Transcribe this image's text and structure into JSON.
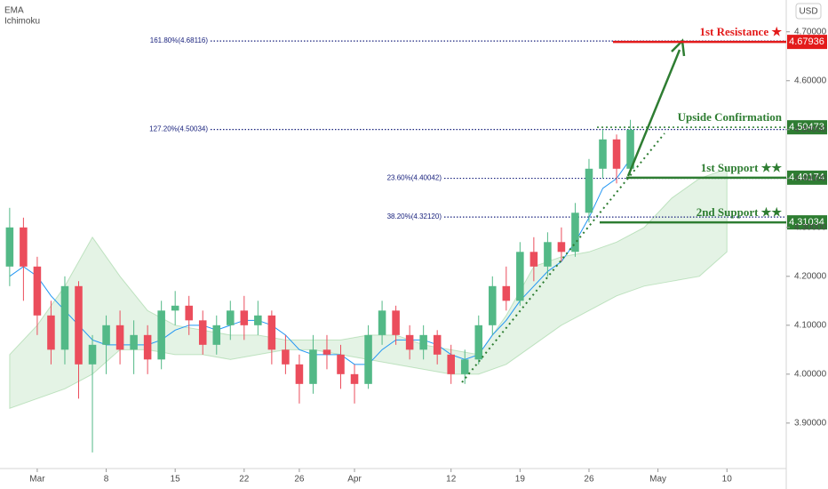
{
  "chart_data": {
    "type": "candlestick",
    "currency": "USD",
    "legend": [
      "EMA",
      "Ichimoku"
    ],
    "xlim": [
      -2.7,
      54.3
    ],
    "xticks": [
      {
        "value": 0,
        "label": "Mar"
      },
      {
        "value": 5,
        "label": "8"
      },
      {
        "value": 10,
        "label": "15"
      },
      {
        "value": 15,
        "label": "22"
      },
      {
        "value": 19,
        "label": "26"
      },
      {
        "value": 23,
        "label": "Apr"
      },
      {
        "value": 30,
        "label": "12"
      },
      {
        "value": 35,
        "label": "19"
      },
      {
        "value": 40,
        "label": "26"
      },
      {
        "value": 45,
        "label": "May"
      },
      {
        "value": 50,
        "label": "10"
      }
    ],
    "ylim": [
      3.807,
      4.765
    ],
    "yticks": [
      {
        "value": 3.9,
        "label": "3.90000"
      },
      {
        "value": 4.0,
        "label": "4.00000"
      },
      {
        "value": 4.1,
        "label": "4.10000"
      },
      {
        "value": 4.2,
        "label": "4.20000"
      },
      {
        "value": 4.3,
        "label": "4.30000"
      },
      {
        "value": 4.4,
        "label": "4.40000"
      },
      {
        "value": 4.5,
        "label": "4.50000"
      },
      {
        "value": 4.6,
        "label": "4.60000"
      },
      {
        "value": 4.7,
        "label": "4.70000"
      }
    ],
    "grid": false,
    "up_color": "#53b987",
    "down_color": "#eb4d5c",
    "x": [
      -2,
      -1,
      0,
      1,
      2,
      3,
      4,
      5,
      6,
      7,
      8,
      9,
      10,
      11,
      12,
      13,
      14,
      15,
      16,
      17,
      18,
      19,
      20,
      21,
      22,
      23,
      24,
      25,
      26,
      27,
      28,
      29,
      30,
      31,
      32,
      33,
      34,
      35,
      36,
      37,
      38,
      39,
      40,
      41,
      42,
      43
    ],
    "open": [
      4.22,
      4.3,
      4.22,
      4.12,
      4.05,
      4.18,
      4.02,
      4.06,
      4.1,
      4.05,
      4.08,
      4.03,
      4.13,
      4.14,
      4.11,
      4.06,
      4.1,
      4.13,
      4.1,
      4.12,
      4.05,
      4.02,
      3.98,
      4.05,
      4.04,
      4.0,
      3.98,
      4.08,
      4.13,
      4.08,
      4.05,
      4.08,
      4.04,
      4.0,
      4.03,
      4.1,
      4.18,
      4.15,
      4.25,
      4.22,
      4.27,
      4.25,
      4.33,
      4.42,
      4.48,
      4.42
    ],
    "high": [
      4.34,
      4.32,
      4.24,
      4.15,
      4.2,
      4.19,
      4.08,
      4.12,
      4.13,
      4.11,
      4.1,
      4.15,
      4.17,
      4.16,
      4.13,
      4.12,
      4.15,
      4.16,
      4.15,
      4.13,
      4.08,
      4.04,
      4.08,
      4.08,
      4.06,
      4.02,
      4.1,
      4.15,
      4.14,
      4.1,
      4.1,
      4.09,
      4.06,
      4.05,
      4.12,
      4.2,
      4.22,
      4.27,
      4.28,
      4.29,
      4.3,
      4.35,
      4.44,
      4.5,
      4.49,
      4.52
    ],
    "low": [
      4.18,
      4.15,
      4.08,
      4.02,
      4.02,
      3.95,
      3.84,
      4.0,
      4.02,
      4.0,
      4.0,
      4.01,
      4.1,
      4.08,
      4.04,
      4.04,
      4.07,
      4.07,
      4.08,
      4.02,
      4.0,
      3.94,
      3.96,
      4.01,
      3.97,
      3.94,
      3.97,
      4.06,
      4.06,
      4.03,
      4.03,
      4.02,
      3.98,
      3.98,
      4.02,
      4.08,
      4.13,
      4.14,
      4.19,
      4.2,
      4.23,
      4.24,
      4.31,
      4.4,
      4.39,
      4.41
    ],
    "close": [
      4.3,
      4.22,
      4.12,
      4.05,
      4.18,
      4.02,
      4.06,
      4.1,
      4.05,
      4.08,
      4.03,
      4.13,
      4.14,
      4.11,
      4.06,
      4.1,
      4.13,
      4.1,
      4.12,
      4.05,
      4.02,
      3.98,
      4.05,
      4.04,
      4.0,
      3.98,
      4.08,
      4.13,
      4.08,
      4.05,
      4.08,
      4.04,
      4.0,
      4.03,
      4.1,
      4.18,
      4.15,
      4.25,
      4.22,
      4.27,
      4.25,
      4.33,
      4.42,
      4.48,
      4.42,
      4.5
    ],
    "ema": {
      "color": "#2196f3",
      "values": [
        4.2,
        4.22,
        4.2,
        4.16,
        4.13,
        4.1,
        4.07,
        4.06,
        4.06,
        4.06,
        4.06,
        4.07,
        4.09,
        4.1,
        4.1,
        4.09,
        4.1,
        4.11,
        4.11,
        4.1,
        4.08,
        4.05,
        4.04,
        4.04,
        4.04,
        4.02,
        4.02,
        4.05,
        4.07,
        4.07,
        4.07,
        4.06,
        4.04,
        4.03,
        4.04,
        4.08,
        4.11,
        4.15,
        4.18,
        4.21,
        4.23,
        4.27,
        4.32,
        4.38,
        4.4,
        4.44
      ]
    },
    "cloud": {
      "color": "#4caf50",
      "x": [
        -2,
        0,
        2,
        4,
        6,
        8,
        10,
        12,
        14,
        16,
        18,
        20,
        22,
        24,
        26,
        28,
        30,
        32,
        34,
        36,
        38,
        40,
        42,
        44,
        46,
        48,
        50
      ],
      "upper": [
        4.04,
        4.1,
        4.18,
        4.28,
        4.2,
        4.13,
        4.1,
        4.09,
        4.08,
        4.08,
        4.07,
        4.07,
        4.07,
        4.08,
        4.08,
        4.06,
        4.05,
        4.04,
        4.12,
        4.22,
        4.24,
        4.25,
        4.27,
        4.3,
        4.36,
        4.4,
        4.42
      ],
      "lower": [
        3.93,
        3.95,
        3.97,
        4.0,
        4.05,
        4.05,
        4.04,
        4.04,
        4.03,
        4.04,
        4.05,
        4.05,
        4.04,
        4.03,
        4.02,
        4.01,
        4.0,
        4.0,
        4.02,
        4.06,
        4.1,
        4.13,
        4.16,
        4.18,
        4.19,
        4.2,
        4.25
      ]
    },
    "fib_levels": [
      {
        "label": "161.80%(4.68116)",
        "value": 4.68116
      },
      {
        "label": "127.20%(4.50034)",
        "value": 4.50034
      },
      {
        "label": "23.60%(4.40042)",
        "value": 4.40042
      },
      {
        "label": "38.20%(4.32120)",
        "value": 4.3212
      }
    ],
    "levels": [
      {
        "name": "1st Resistance ★",
        "value": 4.67936,
        "color": "#e31b1b",
        "style": "solid"
      },
      {
        "name": "Upside Confirmation",
        "value": 4.50473,
        "color": "#2e7d32",
        "style": "dotted"
      },
      {
        "name": "1st Support ★★",
        "value": 4.40174,
        "color": "#2e7d32",
        "style": "solid"
      },
      {
        "name": "2nd Support ★★",
        "value": 4.31034,
        "color": "#2e7d32",
        "style": "solid"
      }
    ]
  }
}
